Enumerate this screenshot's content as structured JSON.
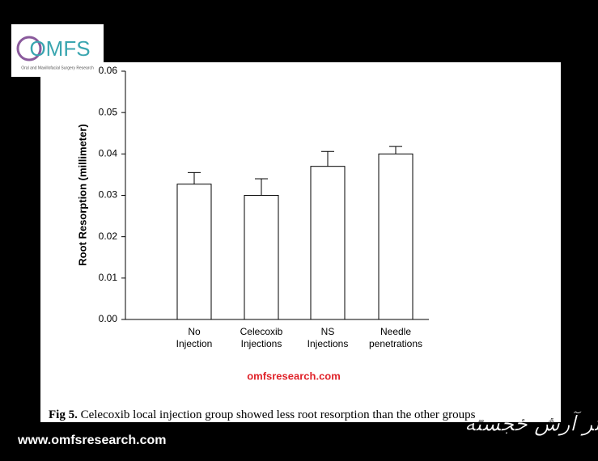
{
  "chart_data": {
    "type": "bar",
    "y_label": "Root Resorption (millimeter)",
    "categories": [
      [
        "No",
        "Injection"
      ],
      [
        "Celecoxib",
        "Injections"
      ],
      [
        "NS",
        "Injections"
      ],
      [
        "Needle",
        "penetrations"
      ]
    ],
    "values": [
      0.0327,
      0.03,
      0.037,
      0.04
    ],
    "errors": [
      0.0028,
      0.004,
      0.0036,
      0.0018
    ],
    "color": "#ffffff",
    "ylim": [
      0,
      0.06
    ],
    "yticks": [
      {
        "value": 0,
        "label": "0.00"
      },
      {
        "value": 0.01,
        "label": "0.01"
      },
      {
        "value": 0.02,
        "label": "0.02"
      },
      {
        "value": 0.03,
        "label": "0.03"
      },
      {
        "value": 0.04,
        "label": "0.04"
      },
      {
        "value": 0.05,
        "label": "0.05"
      },
      {
        "value": 0.06,
        "label": "0.06"
      }
    ]
  },
  "watermark": "omfsresearch.com",
  "caption": {
    "label": "Fig 5.",
    "text": "Celecoxib local injection group showed less root resorption than the other groups"
  },
  "logo": {
    "title": "OMFS",
    "subtitle": "Oral and Maxillofacial Surgery Research"
  },
  "footer_url": "www.omfsresearch.com",
  "signature": "دکتر آرش خجسته"
}
